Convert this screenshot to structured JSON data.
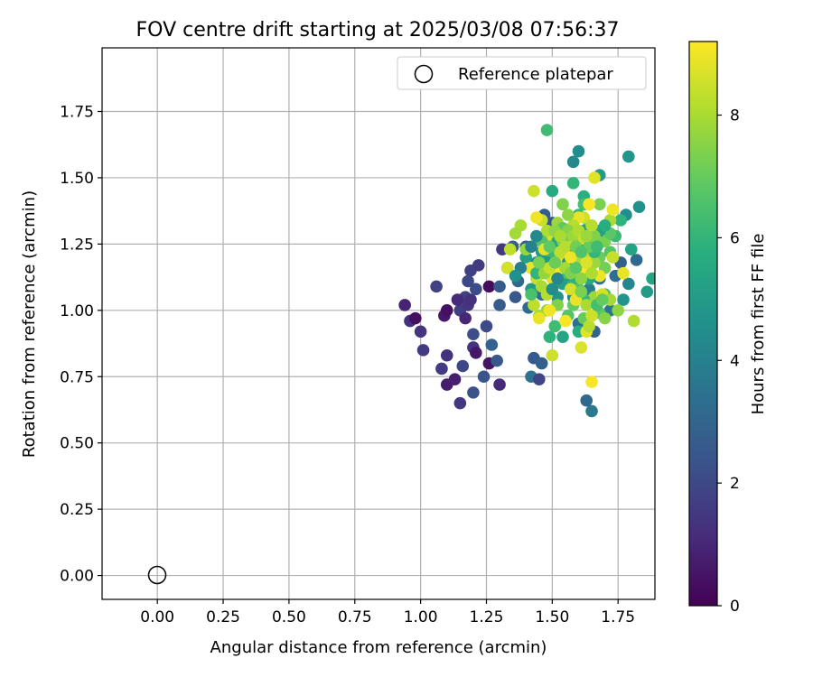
{
  "chart_data": {
    "type": "scatter",
    "title": "FOV centre drift starting at 2025/03/08 07:56:37",
    "xlabel": "Angular distance from reference (arcmin)",
    "ylabel": "Rotation from reference (arcmin)",
    "xlim": [
      -0.21,
      1.89
    ],
    "ylim": [
      -0.09,
      1.99
    ],
    "xticks": [
      "0.00",
      "0.25",
      "0.50",
      "0.75",
      "1.00",
      "1.25",
      "1.50",
      "1.75"
    ],
    "yticks": [
      "0.00",
      "0.25",
      "0.50",
      "0.75",
      "1.00",
      "1.25",
      "1.50",
      "1.75"
    ],
    "grid": true,
    "legend": {
      "position": "top-right",
      "label": "Reference platepar"
    },
    "reference_point": {
      "x": 0.0,
      "y": 0.0
    },
    "colorbar": {
      "label": "Hours from first FF file",
      "min": 0,
      "max": 9.2,
      "ticks": [
        "0",
        "2",
        "4",
        "6",
        "8"
      ],
      "colormap": "viridis"
    },
    "series": [
      {
        "marker": "filled-circle",
        "points": [
          [
            0.94,
            1.02,
            0.9
          ],
          [
            0.96,
            0.96,
            1.3
          ],
          [
            0.98,
            0.97,
            0.4
          ],
          [
            1.0,
            0.92,
            1.4
          ],
          [
            1.01,
            0.85,
            1.6
          ],
          [
            1.08,
            0.78,
            1.6
          ],
          [
            1.1,
            0.83,
            1.3
          ],
          [
            1.1,
            0.72,
            0.7
          ],
          [
            1.09,
            0.98,
            0.6
          ],
          [
            1.1,
            1.0,
            0.4
          ],
          [
            1.13,
            0.74,
            0.8
          ],
          [
            1.15,
            0.65,
            1.5
          ],
          [
            1.16,
            0.79,
            2.0
          ],
          [
            1.15,
            1.0,
            1.7
          ],
          [
            1.17,
            0.97,
            1.0
          ],
          [
            1.17,
            1.05,
            1.8
          ],
          [
            1.14,
            1.04,
            1.1
          ],
          [
            1.2,
            0.91,
            2.2
          ],
          [
            1.2,
            0.86,
            1.4
          ],
          [
            1.21,
            0.84,
            0.6
          ],
          [
            1.2,
            0.69,
            2.3
          ],
          [
            1.18,
            1.02,
            1.4
          ],
          [
            1.19,
            1.04,
            1.3
          ],
          [
            1.21,
            1.08,
            2.1
          ],
          [
            1.19,
            1.15,
            1.7
          ],
          [
            1.18,
            1.11,
            2.0
          ],
          [
            1.22,
            1.17,
            1.6
          ],
          [
            1.24,
            0.75,
            2.4
          ],
          [
            1.25,
            0.94,
            2.1
          ],
          [
            1.26,
            0.8,
            0.5
          ],
          [
            1.27,
            0.87,
            2.9
          ],
          [
            1.29,
            0.81,
            2.5
          ],
          [
            1.3,
            0.72,
            1.1
          ],
          [
            1.3,
            1.02,
            2.7
          ],
          [
            1.26,
            1.09,
            0.3
          ],
          [
            1.3,
            1.09,
            2.6
          ],
          [
            1.31,
            1.23,
            1.5
          ],
          [
            1.06,
            1.09,
            1.8
          ],
          [
            1.33,
            1.16,
            3.0
          ],
          [
            1.35,
            1.24,
            2.8
          ],
          [
            1.36,
            1.05,
            2.5
          ],
          [
            1.37,
            1.11,
            3.1
          ],
          [
            1.4,
            1.24,
            2.6
          ],
          [
            1.41,
            1.01,
            3.2
          ],
          [
            1.42,
            0.75,
            3.5
          ],
          [
            1.43,
            0.82,
            2.6
          ],
          [
            1.45,
            0.74,
            1.9
          ],
          [
            1.46,
            0.8,
            2.8
          ],
          [
            1.44,
            1.15,
            3.1
          ],
          [
            1.46,
            1.06,
            3.3
          ],
          [
            1.48,
            1.28,
            3.4
          ],
          [
            1.47,
            1.36,
            2.7
          ],
          [
            1.5,
            1.33,
            2.5
          ],
          [
            1.51,
            1.22,
            3.4
          ],
          [
            1.53,
            1.18,
            3.6
          ],
          [
            1.55,
            1.2,
            3.5
          ],
          [
            1.57,
            1.12,
            3.7
          ],
          [
            1.58,
            1.05,
            4.2
          ],
          [
            1.6,
            1.24,
            4.5
          ],
          [
            1.62,
            1.15,
            4.0
          ],
          [
            1.63,
            0.66,
            3.1
          ],
          [
            1.65,
            0.62,
            3.7
          ],
          [
            1.6,
            0.95,
            3.3
          ],
          [
            1.66,
            0.92,
            3.0
          ],
          [
            1.62,
            1.3,
            3.2
          ],
          [
            1.64,
            1.08,
            3.9
          ],
          [
            1.68,
            1.12,
            3.4
          ],
          [
            1.72,
            1.0,
            3.6
          ],
          [
            1.74,
            1.13,
            3.3
          ],
          [
            1.76,
            1.18,
            2.8
          ],
          [
            1.78,
            1.36,
            4.4
          ],
          [
            1.79,
            1.1,
            4.2
          ],
          [
            1.82,
            1.19,
            3.1
          ],
          [
            1.83,
            1.39,
            4.6
          ],
          [
            1.86,
            1.07,
            5.0
          ],
          [
            1.88,
            1.12,
            5.4
          ],
          [
            1.77,
            1.04,
            4.7
          ],
          [
            1.8,
            1.23,
            5.3
          ],
          [
            1.79,
            1.58,
            4.8
          ],
          [
            1.68,
            1.51,
            5.0
          ],
          [
            1.6,
            1.6,
            4.5
          ],
          [
            1.58,
            1.56,
            4.3
          ],
          [
            1.48,
            1.68,
            6.3
          ],
          [
            1.5,
            1.45,
            5.6
          ],
          [
            1.58,
            1.48,
            6.0
          ],
          [
            1.62,
            1.43,
            5.8
          ],
          [
            1.44,
            1.18,
            4.1
          ],
          [
            1.48,
            1.14,
            4.6
          ],
          [
            1.4,
            1.2,
            5.1
          ],
          [
            1.42,
            1.08,
            4.9
          ],
          [
            1.52,
            1.05,
            4.7
          ],
          [
            1.54,
            1.1,
            5.2
          ],
          [
            1.56,
            1.26,
            5.5
          ],
          [
            1.58,
            1.3,
            5.8
          ],
          [
            1.6,
            1.36,
            6.1
          ],
          [
            1.62,
            1.4,
            6.4
          ],
          [
            1.64,
            1.32,
            6.6
          ],
          [
            1.66,
            1.26,
            6.9
          ],
          [
            1.68,
            1.2,
            7.1
          ],
          [
            1.7,
            1.16,
            7.2
          ],
          [
            1.72,
            1.22,
            6.7
          ],
          [
            1.74,
            1.28,
            6.2
          ],
          [
            1.76,
            1.34,
            5.9
          ],
          [
            1.7,
            1.06,
            6.5
          ],
          [
            1.68,
            0.99,
            6.8
          ],
          [
            1.62,
            0.97,
            7.0
          ],
          [
            1.6,
            0.92,
            5.7
          ],
          [
            1.54,
            0.9,
            5.4
          ],
          [
            1.49,
            0.9,
            5.9
          ],
          [
            1.51,
            0.94,
            6.3
          ],
          [
            1.56,
            0.98,
            6.7
          ],
          [
            1.58,
            1.02,
            7.0
          ],
          [
            1.52,
            1.02,
            7.4
          ],
          [
            1.48,
            1.0,
            7.7
          ],
          [
            1.45,
            0.98,
            8.0
          ],
          [
            1.43,
            1.02,
            8.3
          ],
          [
            1.45,
            0.97,
            8.9
          ],
          [
            1.49,
            1.0,
            9.0
          ],
          [
            1.55,
            0.96,
            9.1
          ],
          [
            1.5,
            0.83,
            8.5
          ],
          [
            1.61,
            0.86,
            8.7
          ],
          [
            1.63,
            0.92,
            8.8
          ],
          [
            1.65,
            0.73,
            9.1
          ],
          [
            1.64,
            0.94,
            8.2
          ],
          [
            1.66,
            1.05,
            7.8
          ],
          [
            1.69,
            1.06,
            8.6
          ],
          [
            1.7,
            0.97,
            7.5
          ],
          [
            1.72,
            1.04,
            7.9
          ],
          [
            1.75,
            1.0,
            7.6
          ],
          [
            1.81,
            0.96,
            8.1
          ],
          [
            1.77,
            1.14,
            8.9
          ],
          [
            1.73,
            1.2,
            8.4
          ],
          [
            1.72,
            1.34,
            8.0
          ],
          [
            1.73,
            1.38,
            9.0
          ],
          [
            1.68,
            1.4,
            7.3
          ],
          [
            1.66,
            1.5,
            8.8
          ],
          [
            1.64,
            1.4,
            9.1
          ],
          [
            1.62,
            1.35,
            8.5
          ],
          [
            1.6,
            1.35,
            8.9
          ],
          [
            1.58,
            1.32,
            8.2
          ],
          [
            1.56,
            1.36,
            7.6
          ],
          [
            1.54,
            1.4,
            7.4
          ],
          [
            1.52,
            1.33,
            7.8
          ],
          [
            1.5,
            1.28,
            8.6
          ],
          [
            1.48,
            1.3,
            8.1
          ],
          [
            1.46,
            1.34,
            8.4
          ],
          [
            1.44,
            1.35,
            9.0
          ],
          [
            1.43,
            1.45,
            8.5
          ],
          [
            1.38,
            1.32,
            8.0
          ],
          [
            1.36,
            1.29,
            7.9
          ],
          [
            1.34,
            1.23,
            8.3
          ],
          [
            1.33,
            1.16,
            8.6
          ],
          [
            1.4,
            1.23,
            7.7
          ],
          [
            1.42,
            1.16,
            8.9
          ],
          [
            1.44,
            1.12,
            8.4
          ],
          [
            1.46,
            1.09,
            8.0
          ],
          [
            1.48,
            1.06,
            8.2
          ],
          [
            1.5,
            1.12,
            8.7
          ],
          [
            1.52,
            1.16,
            9.1
          ],
          [
            1.54,
            1.2,
            8.8
          ],
          [
            1.56,
            1.24,
            8.5
          ],
          [
            1.58,
            1.18,
            9.0
          ],
          [
            1.6,
            1.2,
            8.0
          ],
          [
            1.62,
            1.16,
            9.2
          ],
          [
            1.64,
            1.22,
            8.3
          ],
          [
            1.66,
            1.18,
            7.8
          ],
          [
            1.68,
            1.13,
            9.0
          ],
          [
            1.7,
            1.26,
            7.3
          ],
          [
            1.72,
            1.29,
            6.8
          ],
          [
            1.42,
            1.06,
            6.5
          ],
          [
            1.44,
            1.14,
            6.0
          ],
          [
            1.46,
            1.19,
            5.6
          ],
          [
            1.46,
            1.26,
            6.6
          ],
          [
            1.5,
            1.2,
            6.2
          ],
          [
            1.52,
            1.26,
            5.3
          ],
          [
            1.54,
            1.31,
            6.9
          ],
          [
            1.56,
            1.14,
            6.3
          ],
          [
            1.58,
            1.1,
            5.9
          ],
          [
            1.6,
            1.08,
            6.6
          ],
          [
            1.62,
            1.04,
            6.1
          ],
          [
            1.64,
            1.12,
            5.5
          ],
          [
            1.66,
            1.22,
            6.0
          ],
          [
            1.68,
            1.3,
            5.2
          ],
          [
            1.7,
            1.32,
            5.7
          ],
          [
            1.64,
            1.26,
            4.8
          ],
          [
            1.62,
            1.3,
            5.1
          ],
          [
            1.6,
            1.26,
            5.4
          ],
          [
            1.58,
            1.22,
            4.7
          ],
          [
            1.56,
            1.18,
            4.4
          ],
          [
            1.52,
            1.12,
            4.2
          ],
          [
            1.5,
            1.08,
            4.5
          ],
          [
            1.48,
            1.18,
            4.8
          ],
          [
            1.46,
            1.22,
            5.0
          ],
          [
            1.44,
            1.28,
            4.3
          ],
          [
            1.42,
            1.24,
            4.0
          ],
          [
            1.38,
            1.16,
            3.9
          ],
          [
            1.36,
            1.13,
            4.6
          ],
          [
            1.54,
            1.26,
            7.2
          ],
          [
            1.56,
            1.3,
            7.5
          ],
          [
            1.58,
            1.28,
            7.8
          ],
          [
            1.6,
            1.3,
            8.1
          ],
          [
            1.62,
            1.27,
            8.4
          ],
          [
            1.64,
            1.24,
            7.0
          ],
          [
            1.66,
            1.28,
            7.4
          ],
          [
            1.57,
            1.08,
            8.6
          ],
          [
            1.59,
            1.04,
            8.9
          ],
          [
            1.61,
            1.07,
            7.3
          ],
          [
            1.63,
            1.02,
            8.0
          ],
          [
            1.65,
            0.98,
            8.5
          ],
          [
            1.67,
            1.02,
            6.4
          ],
          [
            1.69,
            1.04,
            7.0
          ],
          [
            1.53,
            1.22,
            8.3
          ],
          [
            1.55,
            1.16,
            7.9
          ],
          [
            1.57,
            1.14,
            7.4
          ],
          [
            1.59,
            1.16,
            6.8
          ],
          [
            1.61,
            1.12,
            7.6
          ],
          [
            1.63,
            1.18,
            8.7
          ],
          [
            1.65,
            1.14,
            8.1
          ],
          [
            1.47,
            1.14,
            7.7
          ],
          [
            1.49,
            1.16,
            8.4
          ],
          [
            1.51,
            1.18,
            7.1
          ],
          [
            1.45,
            1.18,
            7.3
          ],
          [
            1.47,
            1.23,
            8.8
          ],
          [
            1.49,
            1.24,
            6.9
          ],
          [
            1.51,
            1.3,
            7.6
          ],
          [
            1.53,
            1.28,
            8.0
          ],
          [
            1.55,
            1.24,
            8.2
          ],
          [
            1.57,
            1.2,
            9.0
          ],
          [
            1.59,
            1.24,
            7.2
          ],
          [
            1.61,
            1.22,
            6.6
          ],
          [
            1.63,
            1.28,
            7.8
          ],
          [
            1.65,
            1.32,
            8.2
          ],
          [
            1.67,
            1.24,
            6.3
          ]
        ]
      }
    ]
  }
}
